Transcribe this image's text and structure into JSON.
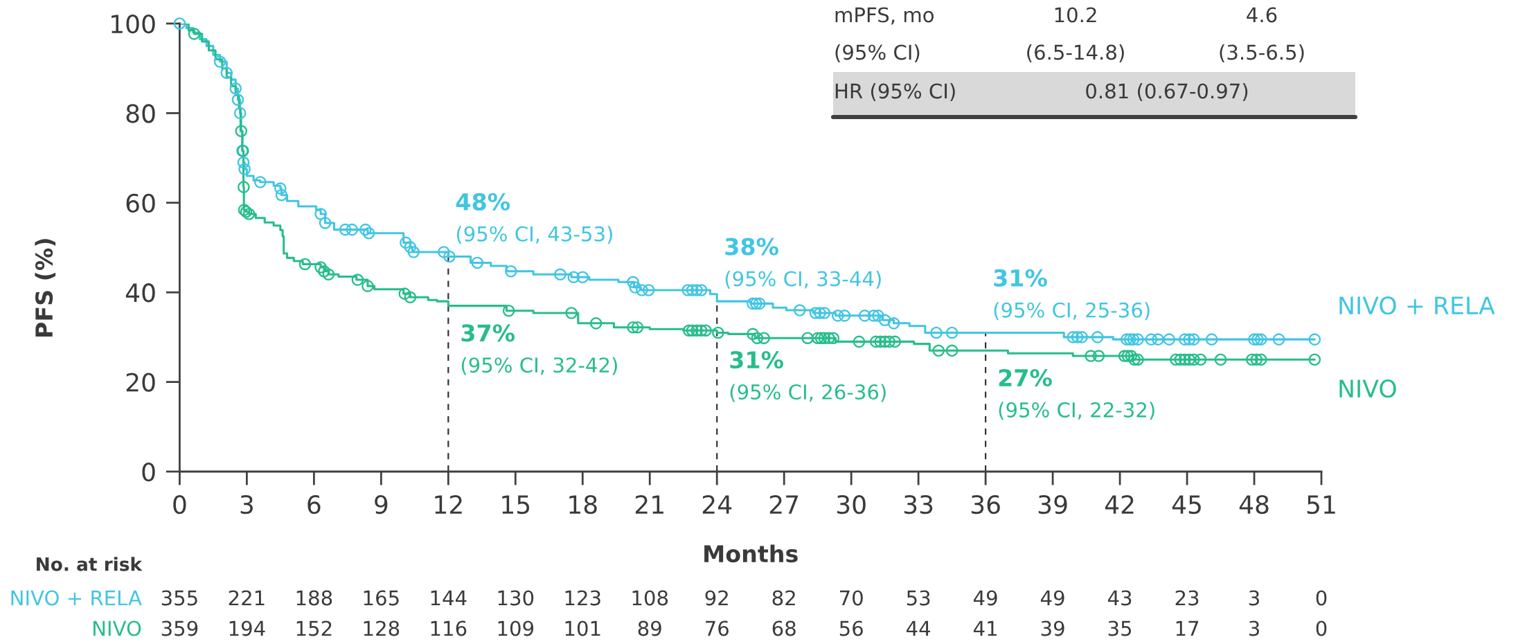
{
  "chart_data": {
    "type": "step",
    "xlabel": "Months",
    "ylabel": "PFS (%)",
    "xlim": [
      0,
      51
    ],
    "xticks": [
      0,
      3,
      6,
      9,
      12,
      15,
      18,
      21,
      24,
      27,
      30,
      33,
      36,
      39,
      42,
      45,
      48,
      51
    ],
    "ylim": [
      0,
      100
    ],
    "yticks": [
      0,
      20,
      40,
      60,
      80,
      100
    ],
    "series": [
      {
        "name": "NIVO + RELA",
        "color": "#41c5e2",
        "type": "step",
        "x": [
          0,
          0.3,
          0.6,
          0.9,
          1.2,
          1.5,
          1.8,
          2.1,
          2.3,
          2.5,
          2.6,
          2.7,
          2.75,
          2.8,
          2.85,
          2.9,
          3.0,
          3.3,
          3.6,
          4.2,
          4.5,
          4.55,
          4.8,
          5.3,
          6.1,
          6.3,
          6.5,
          6.9,
          8.4,
          10.0,
          10.3,
          10.4,
          12,
          13.0,
          13.9,
          14.6,
          15.8,
          17.5,
          18.3,
          19.6,
          20.3,
          20.6,
          23.7,
          24,
          25.5,
          26.5,
          27.1,
          28.3,
          29.3,
          31.4,
          31.9,
          32.6,
          33.3,
          36,
          39.5,
          41.7,
          50.7
        ],
        "values": [
          100,
          99,
          98,
          96.5,
          95,
          93,
          91.5,
          89,
          87.5,
          85.5,
          83,
          80,
          76,
          71.6,
          69,
          67.5,
          66,
          65,
          64.6,
          63.8,
          63.2,
          61.7,
          60.4,
          59.2,
          58.4,
          57.5,
          55.5,
          54,
          53.2,
          51.1,
          50.1,
          49,
          48,
          46.6,
          45.9,
          44.7,
          44,
          43.4,
          42.8,
          42.3,
          41.1,
          40.5,
          39.6,
          38,
          37.5,
          36.6,
          36,
          35.4,
          34.8,
          33.8,
          33.1,
          32.5,
          31,
          31,
          30,
          29.5,
          29.5
        ],
        "value_labels": [
          null,
          null,
          null,
          null,
          null,
          null,
          null,
          null,
          null,
          null,
          null,
          null,
          null,
          null,
          null,
          null,
          null,
          null,
          null,
          null,
          null,
          null,
          null,
          null,
          null,
          null,
          null,
          null,
          null,
          null,
          null,
          null,
          "48%\n(95% CI, 43-53)",
          null,
          null,
          null,
          null,
          null,
          null,
          null,
          null,
          null,
          null,
          "38%\n(95% CI, 33-44)",
          null,
          null,
          null,
          null,
          null,
          null,
          null,
          null,
          null,
          "31%\n(95% CI, 25-36)",
          null,
          null,
          null
        ]
      },
      {
        "name": "NIVO",
        "color": "#27bd8b",
        "type": "step",
        "x": [
          0,
          0.4,
          0.65,
          1.0,
          1.3,
          1.6,
          1.9,
          2.1,
          2.3,
          2.5,
          2.65,
          2.72,
          2.8,
          2.85,
          2.87,
          2.97,
          3.1,
          3.4,
          3.8,
          4.2,
          4.5,
          4.6,
          4.65,
          4.8,
          5.1,
          5.5,
          6.3,
          6.45,
          6.65,
          7.1,
          7.9,
          8.4,
          8.7,
          10.0,
          10.3,
          11.1,
          11.5,
          12,
          14.6,
          15.8,
          17.8,
          19.4,
          21.0,
          22.5,
          24,
          24.5,
          25.7,
          29.3,
          32.8,
          33.5,
          36,
          37,
          39.9,
          42.6,
          50.7
        ],
        "values": [
          100,
          98.5,
          97.7,
          96,
          94,
          92,
          90,
          88,
          86,
          84,
          81,
          76,
          71.6,
          63.5,
          58.4,
          58,
          57.5,
          56.6,
          55.6,
          54.9,
          53.9,
          52.5,
          48.7,
          47.7,
          47,
          46.3,
          45.6,
          44.7,
          44,
          43.5,
          42.8,
          41.4,
          40.7,
          39.7,
          38.9,
          38.3,
          38,
          37,
          35.9,
          35.4,
          33.1,
          32.2,
          31.8,
          31.5,
          31,
          30.7,
          29.8,
          29,
          28.5,
          27,
          27,
          26.4,
          25.8,
          25,
          25
        ],
        "value_labels": [
          null,
          null,
          null,
          null,
          null,
          null,
          null,
          null,
          null,
          null,
          null,
          null,
          null,
          null,
          null,
          null,
          null,
          null,
          null,
          null,
          null,
          null,
          null,
          null,
          null,
          null,
          null,
          null,
          null,
          null,
          null,
          null,
          null,
          null,
          null,
          null,
          null,
          "37%\n(95% CI, 32-42)",
          null,
          null,
          null,
          null,
          null,
          null,
          "31%\n(95% CI, 26-36)",
          null,
          null,
          null,
          null,
          null,
          "27%\n(95% CI, 22-32)",
          null,
          null,
          null,
          null
        ]
      },
      {
        "color": "#41c5e2",
        "type": "scatter",
        "marker": "circle",
        "x": [
          0,
          1.8,
          2.1,
          2.5,
          2.6,
          2.7,
          2.8,
          2.85,
          2.9,
          3.6,
          4.5,
          4.55,
          6.3,
          6.5,
          7.4,
          7.7,
          8.3,
          8.45,
          10.1,
          10.3,
          10.45,
          11.8,
          12.05,
          13.3,
          14.8,
          17.0,
          17.6,
          18.0,
          20.25,
          20.35,
          20.65,
          20.95,
          22.7,
          22.9,
          23.1,
          23.3,
          25.6,
          25.75,
          25.9,
          27.7,
          28.4,
          28.6,
          28.8,
          29.4,
          29.7,
          30.6,
          31.0,
          31.2,
          31.5,
          31.9,
          33.8,
          34.5,
          39.9,
          40.1,
          40.3,
          41.0,
          42.3,
          42.45,
          42.6,
          42.8,
          43.4,
          43.7,
          44.2,
          44.9,
          45.1,
          45.3,
          46.1,
          48.0,
          48.15,
          48.3,
          49.1,
          50.7
        ],
        "values": [
          100,
          91.5,
          89,
          85.5,
          83,
          80,
          71.6,
          69,
          67.5,
          64.6,
          63.2,
          61.7,
          57.5,
          55.5,
          54,
          54,
          54,
          53.2,
          51.1,
          50.1,
          49,
          49,
          48,
          46.6,
          44.7,
          44,
          43.4,
          43.4,
          42.3,
          41.1,
          40.5,
          40.5,
          40.5,
          40.5,
          40.5,
          40.5,
          37.5,
          37.5,
          37.5,
          36,
          35.4,
          35.4,
          35.4,
          34.8,
          34.8,
          34.8,
          34.8,
          34.8,
          33.8,
          33.1,
          31,
          31,
          30,
          30,
          30,
          30,
          29.5,
          29.5,
          29.5,
          29.5,
          29.5,
          29.5,
          29.5,
          29.5,
          29.5,
          29.5,
          29.5,
          29.5,
          29.5,
          29.5,
          29.5,
          29.5
        ]
      },
      {
        "color": "#27bd8b",
        "type": "scatter",
        "marker": "circle",
        "x": [
          0.65,
          2.75,
          2.83,
          2.86,
          2.88,
          2.97,
          3.1,
          5.6,
          6.3,
          6.45,
          6.65,
          7.95,
          8.4,
          10.05,
          10.3,
          14.7,
          17.5,
          18.6,
          20.25,
          20.45,
          22.75,
          22.9,
          23.1,
          23.3,
          23.5,
          24.05,
          25.6,
          25.8,
          26.1,
          28.05,
          28.5,
          28.65,
          28.8,
          29.0,
          29.2,
          30.35,
          31.1,
          31.3,
          31.5,
          31.7,
          31.95,
          33.9,
          34.5,
          40.7,
          41.05,
          42.2,
          42.35,
          42.5,
          42.65,
          42.8,
          44.5,
          44.7,
          44.9,
          45.1,
          45.3,
          45.6,
          46.5,
          47.9,
          48.1,
          48.3,
          50.7
        ],
        "values": [
          97.7,
          76,
          71.6,
          63.5,
          58.4,
          58,
          57.5,
          46.3,
          45.6,
          44.7,
          44,
          42.8,
          41.4,
          39.7,
          38.9,
          35.9,
          35.4,
          33.1,
          32.2,
          32.2,
          31.5,
          31.5,
          31.5,
          31.5,
          31.5,
          31,
          30.7,
          29.8,
          29.8,
          29.8,
          29.8,
          29.8,
          29.8,
          29.8,
          29.8,
          29,
          29,
          29,
          29,
          29,
          29,
          27,
          27,
          25.8,
          25.8,
          25.8,
          25.8,
          25.8,
          25,
          25,
          25,
          25,
          25,
          25,
          25,
          25,
          25,
          25,
          25,
          25,
          25
        ]
      }
    ],
    "ref_lines": [
      {
        "axis": "x",
        "value": 12,
        "color": "#333333",
        "line_style": "dashed"
      },
      {
        "axis": "x",
        "value": 24,
        "color": "#333333",
        "line_style": "dashed"
      },
      {
        "axis": "x",
        "value": 36,
        "color": "#333333",
        "line_style": "dashed"
      }
    ],
    "annotations": [
      "mPFS, mo",
      "10.2",
      "4.6",
      "(95% CI)",
      "(6.5-14.8)",
      "(3.5-6.5)",
      "HR (95% CI)",
      "0.81 (0.67-0.97)",
      "No. at risk",
      "NIVO + RELA",
      "355",
      "221",
      "188",
      "165",
      "144",
      "130",
      "123",
      "108",
      "92",
      "82",
      "70",
      "53",
      "49",
      "49",
      "43",
      "23",
      "3",
      "0",
      "NIVO",
      "359",
      "194",
      "152",
      "128",
      "116",
      "109",
      "101",
      "89",
      "76",
      "68",
      "56",
      "44",
      "41",
      "39",
      "35",
      "17",
      "3",
      "0"
    ]
  }
}
